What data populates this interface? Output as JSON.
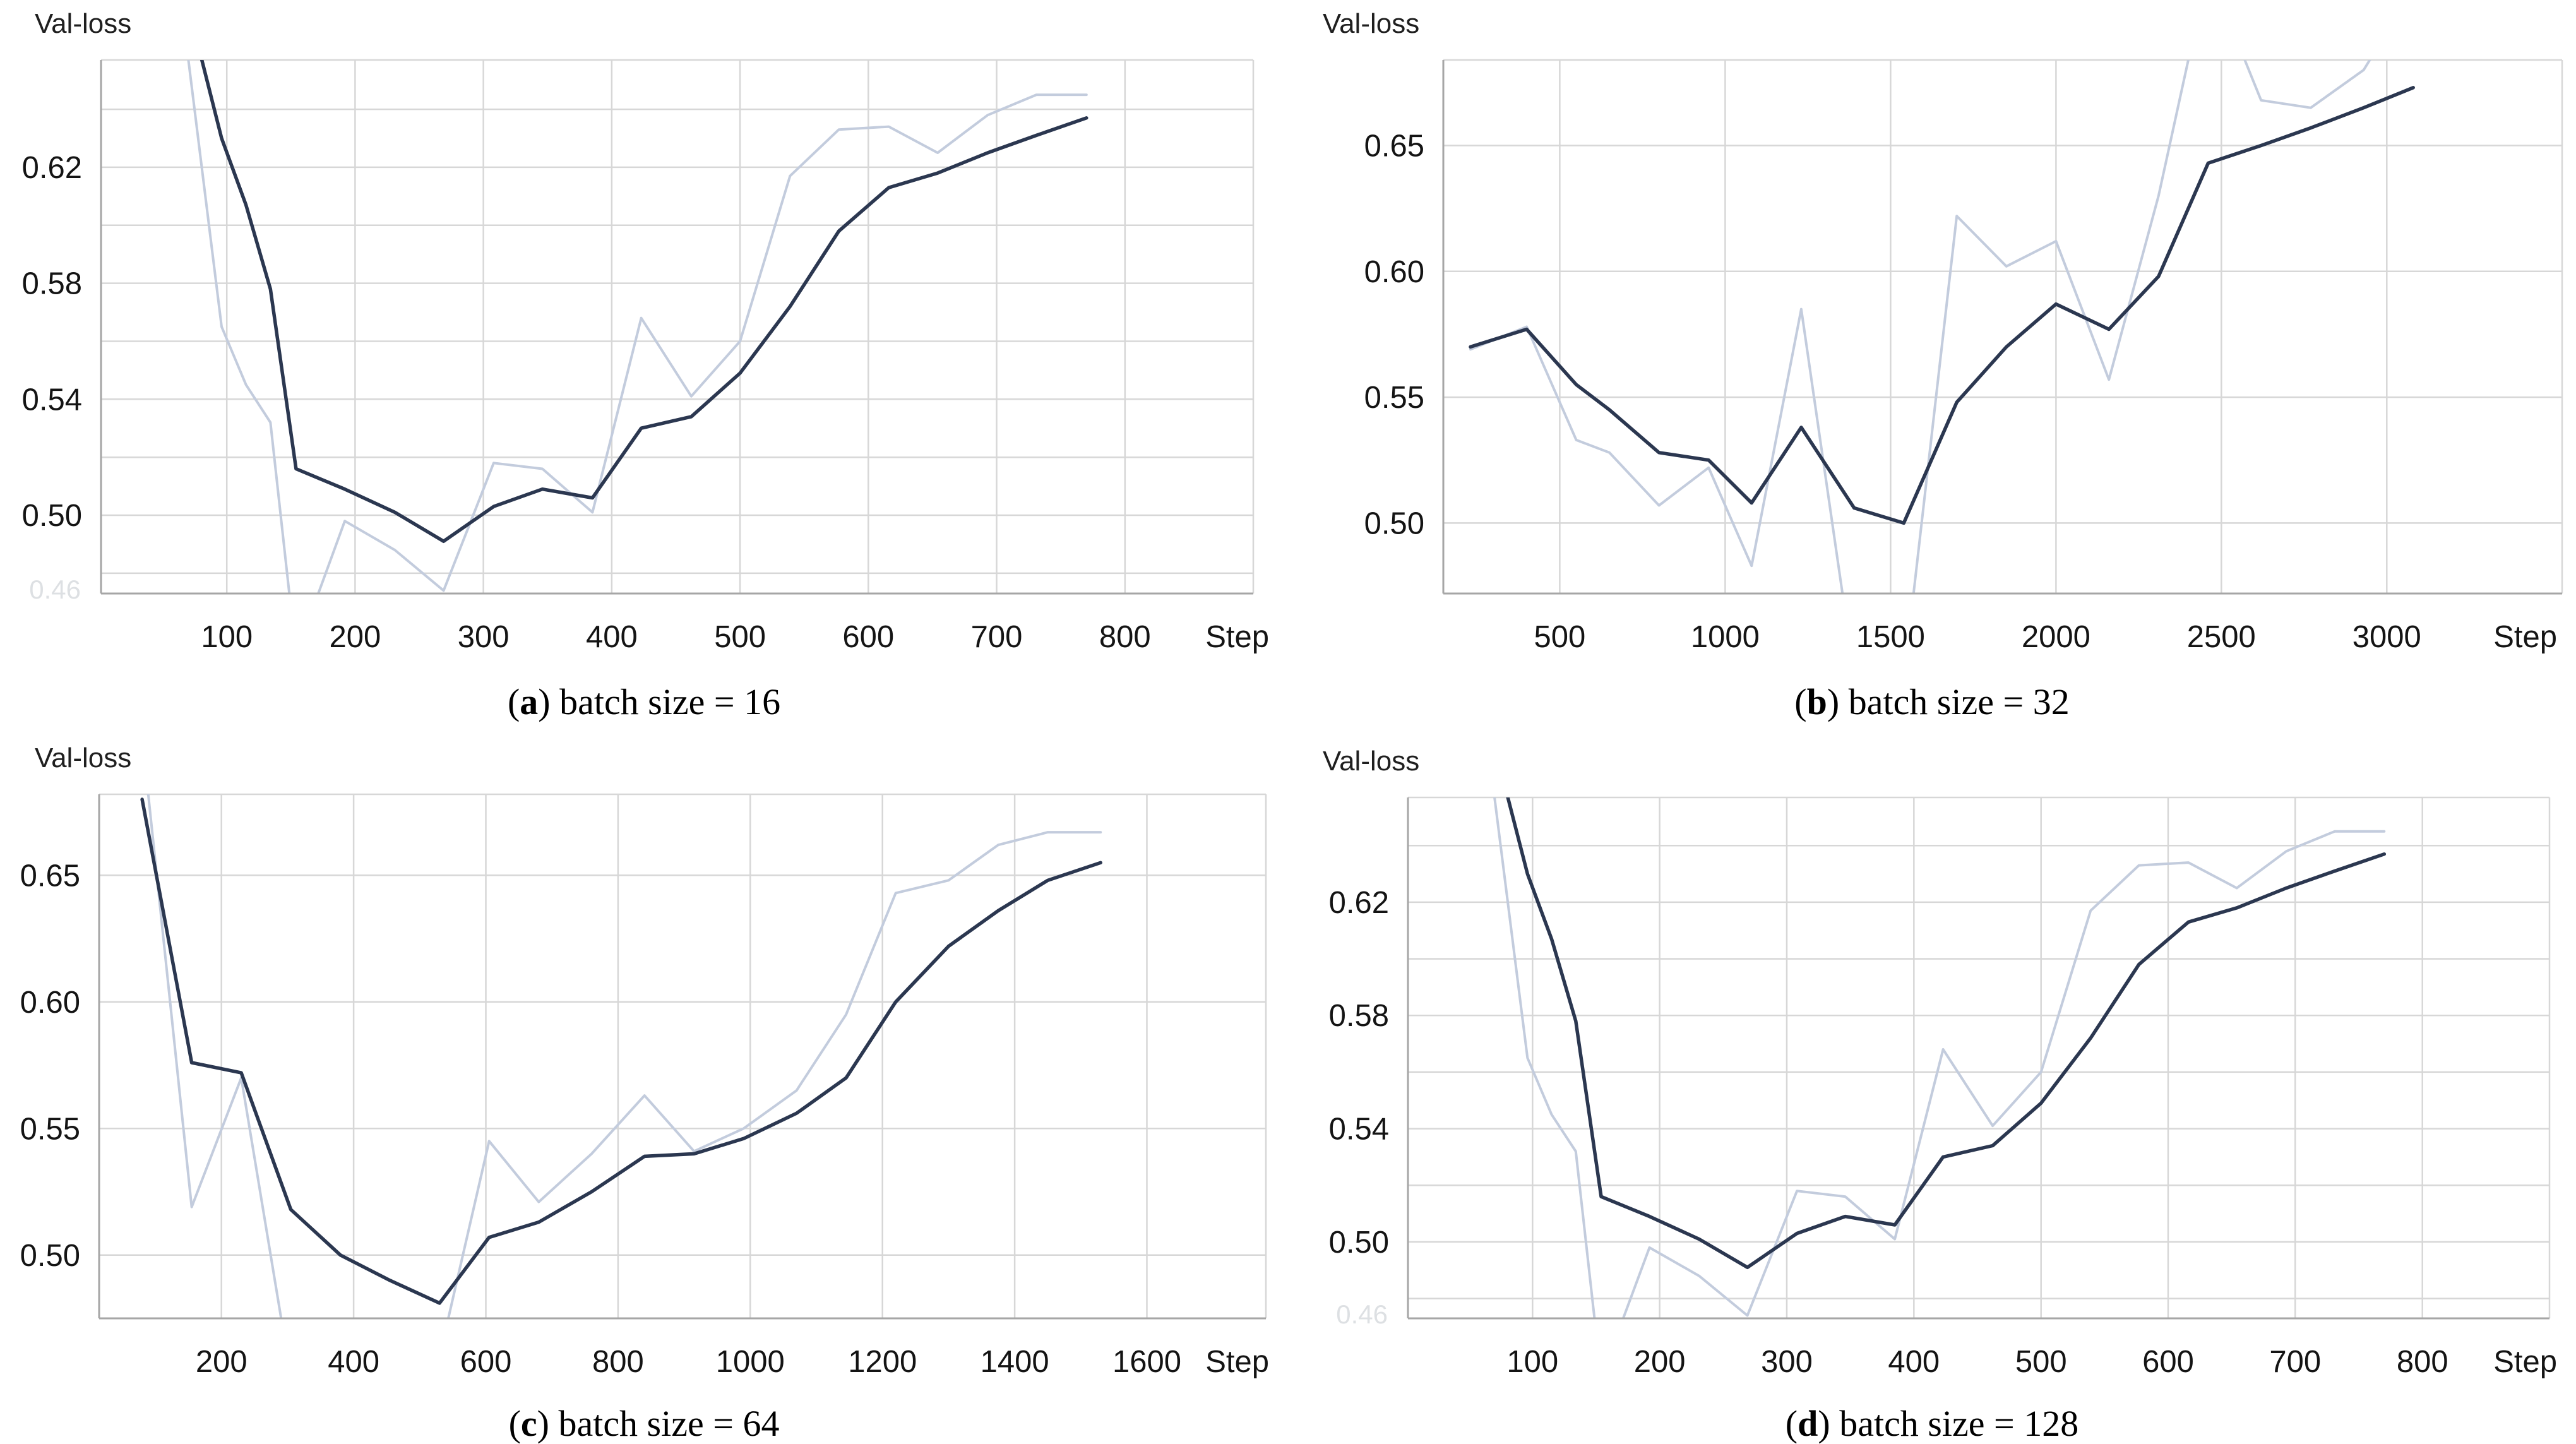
{
  "colors": {
    "dark_line": "#2b3750",
    "light_line": "#c3ccdd",
    "grid": "#d7d7d7",
    "axis": "#a6a6a6",
    "tick_text": "#141414",
    "caption_text": "#000000",
    "background": "#ffffff"
  },
  "chart_data": [
    {
      "panel": "a",
      "type": "line",
      "y_axis_title": "Val-loss",
      "x_axis_label": "Step",
      "caption": {
        "open": "(",
        "letter": "a",
        "rest": ") batch size = 16"
      },
      "xlim": [
        2,
        900
      ],
      "ylim": [
        0.473,
        0.657
      ],
      "xticks": [
        100,
        200,
        300,
        400,
        500,
        600,
        700,
        800
      ],
      "yticks": [
        {
          "value": 0.5,
          "label": "0.50"
        },
        {
          "value": 0.54,
          "label": "0.54"
        },
        {
          "value": 0.58,
          "label": "0.58"
        },
        {
          "value": 0.62,
          "label": "0.62"
        }
      ],
      "ygrid": [
        0.48,
        0.5,
        0.52,
        0.54,
        0.56,
        0.58,
        0.6,
        0.62,
        0.64
      ],
      "ghost_label": "0.46",
      "layout": {
        "margin_left": 160,
        "margin_right": 55,
        "margin_top": 95,
        "plot_bottom": 940
      },
      "series": [
        {
          "name": "light-raw-series",
          "color": "light_line",
          "stroke_width": 4,
          "x": [
            58,
            96,
            115,
            134,
            154,
            192,
            231,
            269,
            308,
            346,
            385,
            423,
            462,
            500,
            539,
            577,
            616,
            654,
            693,
            731,
            770
          ],
          "y": [
            0.7,
            0.565,
            0.545,
            0.532,
            0.452,
            0.498,
            0.488,
            0.474,
            0.518,
            0.516,
            0.501,
            0.568,
            0.541,
            0.56,
            0.617,
            0.633,
            0.634,
            0.625,
            0.638,
            0.645,
            0.645
          ]
        },
        {
          "name": "dark-smoothed-series",
          "color": "dark_line",
          "stroke_width": 5.5,
          "x": [
            72,
            96,
            115,
            134,
            154,
            192,
            231,
            269,
            308,
            346,
            385,
            423,
            462,
            500,
            539,
            577,
            616,
            654,
            693,
            731,
            770
          ],
          "y": [
            0.672,
            0.63,
            0.607,
            0.578,
            0.516,
            0.509,
            0.501,
            0.491,
            0.503,
            0.509,
            0.506,
            0.53,
            0.534,
            0.549,
            0.572,
            0.598,
            0.613,
            0.618,
            0.625,
            0.631,
            0.637
          ]
        }
      ]
    },
    {
      "panel": "b",
      "type": "line",
      "y_axis_title": "Val-loss",
      "x_axis_label": "Step",
      "caption": {
        "open": "(",
        "letter": "b",
        "rest": ") batch size = 32"
      },
      "xlim": [
        148,
        3530
      ],
      "ylim": [
        0.472,
        0.684
      ],
      "xticks": [
        500,
        1000,
        1500,
        2000,
        2500,
        3000
      ],
      "yticks": [
        {
          "value": 0.5,
          "label": "0.50"
        },
        {
          "value": 0.55,
          "label": "0.55"
        },
        {
          "value": 0.6,
          "label": "0.60"
        },
        {
          "value": 0.65,
          "label": "0.65"
        }
      ],
      "ygrid": [
        0.5,
        0.55,
        0.6,
        0.65
      ],
      "layout": {
        "margin_left": 246,
        "margin_right": 22,
        "margin_top": 95,
        "plot_bottom": 940
      },
      "series": [
        {
          "name": "light-raw-series",
          "color": "light_line",
          "stroke_width": 4,
          "x": [
            230,
            400,
            550,
            650,
            800,
            950,
            1080,
            1230,
            1390,
            1540,
            1700,
            1850,
            2000,
            2160,
            2310,
            2460,
            2620,
            2770,
            2930,
            3080
          ],
          "y": [
            0.569,
            0.578,
            0.533,
            0.528,
            0.507,
            0.522,
            0.483,
            0.585,
            0.44,
            0.438,
            0.622,
            0.602,
            0.612,
            0.557,
            0.63,
            0.72,
            0.668,
            0.665,
            0.68,
            0.712
          ]
        },
        {
          "name": "dark-smoothed-series",
          "color": "dark_line",
          "stroke_width": 5.5,
          "x": [
            230,
            400,
            550,
            650,
            800,
            950,
            1080,
            1230,
            1390,
            1540,
            1700,
            1850,
            2000,
            2160,
            2310,
            2460,
            2620,
            2770,
            2930,
            3080
          ],
          "y": [
            0.57,
            0.577,
            0.555,
            0.545,
            0.528,
            0.525,
            0.508,
            0.538,
            0.506,
            0.5,
            0.548,
            0.57,
            0.587,
            0.577,
            0.598,
            0.643,
            0.65,
            0.657,
            0.665,
            0.673
          ]
        }
      ]
    },
    {
      "panel": "c",
      "type": "line",
      "y_axis_title": "Val-loss",
      "x_axis_label": "Step",
      "caption": {
        "open": "(",
        "letter": "c",
        "rest": ") batch size = 64"
      },
      "xlim": [
        15,
        1780
      ],
      "ylim": [
        0.475,
        0.682
      ],
      "xticks": [
        200,
        400,
        600,
        800,
        1000,
        1200,
        1400,
        1600
      ],
      "yticks": [
        {
          "value": 0.5,
          "label": "0.50"
        },
        {
          "value": 0.55,
          "label": "0.55"
        },
        {
          "value": 0.6,
          "label": "0.60"
        },
        {
          "value": 0.65,
          "label": "0.65"
        }
      ],
      "ygrid": [
        0.5,
        0.55,
        0.6,
        0.65
      ],
      "layout": {
        "margin_left": 157,
        "margin_right": 35,
        "margin_top": 115,
        "plot_bottom": 945
      },
      "series": [
        {
          "name": "light-raw-series",
          "color": "light_line",
          "stroke_width": 4,
          "x": [
            80,
            155,
            230,
            305,
            380,
            455,
            530,
            605,
            680,
            760,
            840,
            915,
            990,
            1070,
            1145,
            1220,
            1300,
            1375,
            1450,
            1530
          ],
          "y": [
            0.705,
            0.519,
            0.57,
            0.452,
            0.44,
            0.445,
            0.46,
            0.545,
            0.521,
            0.54,
            0.563,
            0.541,
            0.55,
            0.565,
            0.595,
            0.643,
            0.648,
            0.662,
            0.667,
            0.667
          ]
        },
        {
          "name": "dark-smoothed-series",
          "color": "dark_line",
          "stroke_width": 5.5,
          "x": [
            80,
            155,
            230,
            305,
            380,
            455,
            530,
            605,
            680,
            760,
            840,
            915,
            990,
            1070,
            1145,
            1220,
            1300,
            1375,
            1450,
            1530
          ],
          "y": [
            0.68,
            0.576,
            0.572,
            0.518,
            0.5,
            0.49,
            0.481,
            0.507,
            0.513,
            0.525,
            0.539,
            0.54,
            0.546,
            0.556,
            0.57,
            0.6,
            0.622,
            0.636,
            0.648,
            0.655
          ]
        }
      ]
    },
    {
      "panel": "d",
      "type": "line",
      "y_axis_title": "Val-loss",
      "x_axis_label": "Step",
      "caption": {
        "open": "(",
        "letter": "d",
        "rest": ") batch size = 128"
      },
      "xlim": [
        2,
        900
      ],
      "ylim": [
        0.473,
        0.657
      ],
      "xticks": [
        100,
        200,
        300,
        400,
        500,
        600,
        700,
        800
      ],
      "yticks": [
        {
          "value": 0.5,
          "label": "0.50"
        },
        {
          "value": 0.54,
          "label": "0.54"
        },
        {
          "value": 0.58,
          "label": "0.58"
        },
        {
          "value": 0.62,
          "label": "0.62"
        }
      ],
      "ygrid": [
        0.48,
        0.5,
        0.52,
        0.54,
        0.56,
        0.58,
        0.6,
        0.62,
        0.64
      ],
      "ghost_label": "0.46",
      "layout": {
        "margin_left": 190,
        "margin_right": 42,
        "margin_top": 120,
        "plot_bottom": 945
      },
      "series": [
        {
          "name": "light-raw-series",
          "color": "light_line",
          "stroke_width": 4,
          "x": [
            58,
            96,
            115,
            134,
            154,
            192,
            231,
            269,
            308,
            346,
            385,
            423,
            462,
            500,
            539,
            577,
            616,
            654,
            693,
            731,
            770
          ],
          "y": [
            0.7,
            0.565,
            0.545,
            0.532,
            0.452,
            0.498,
            0.488,
            0.474,
            0.518,
            0.516,
            0.501,
            0.568,
            0.541,
            0.56,
            0.617,
            0.633,
            0.634,
            0.625,
            0.638,
            0.645,
            0.645
          ]
        },
        {
          "name": "dark-smoothed-series",
          "color": "dark_line",
          "stroke_width": 5.5,
          "x": [
            72,
            96,
            115,
            134,
            154,
            192,
            231,
            269,
            308,
            346,
            385,
            423,
            462,
            500,
            539,
            577,
            616,
            654,
            693,
            731,
            770
          ],
          "y": [
            0.672,
            0.63,
            0.607,
            0.578,
            0.516,
            0.509,
            0.501,
            0.491,
            0.503,
            0.509,
            0.506,
            0.53,
            0.534,
            0.549,
            0.572,
            0.598,
            0.613,
            0.618,
            0.625,
            0.631,
            0.637
          ]
        }
      ]
    }
  ]
}
